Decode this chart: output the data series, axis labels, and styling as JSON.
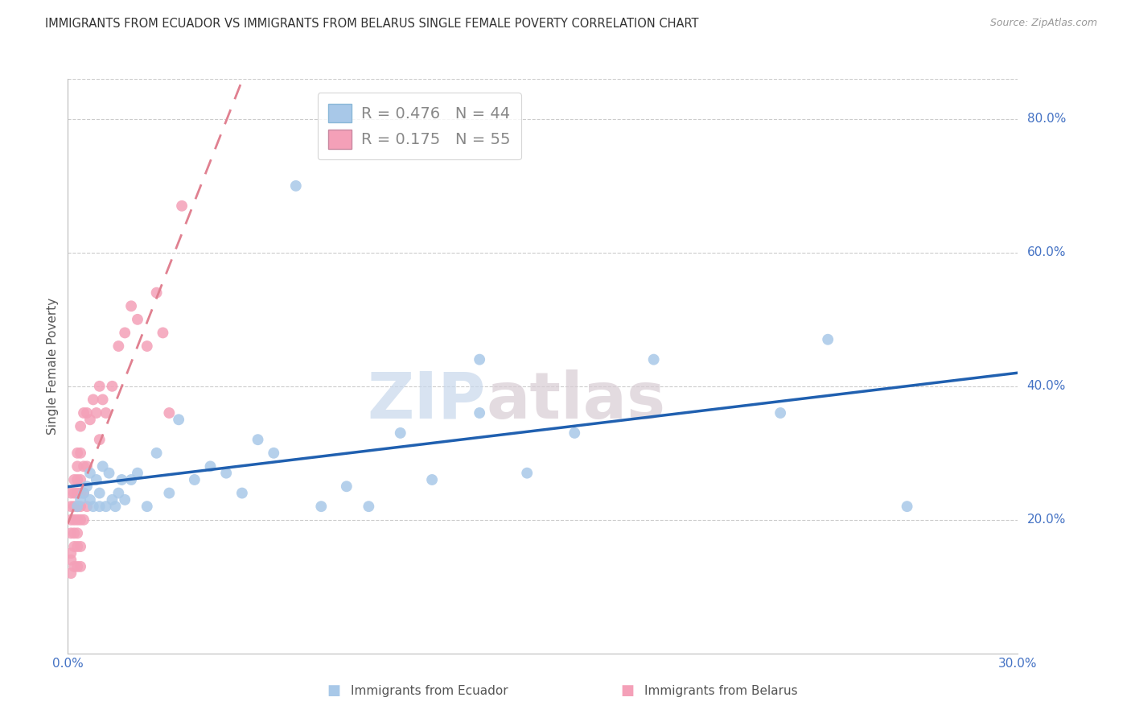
{
  "title": "IMMIGRANTS FROM ECUADOR VS IMMIGRANTS FROM BELARUS SINGLE FEMALE POVERTY CORRELATION CHART",
  "source": "Source: ZipAtlas.com",
  "label_ecuador": "Immigrants from Ecuador",
  "label_belarus": "Immigrants from Belarus",
  "ylabel": "Single Female Poverty",
  "xlim": [
    0.0,
    0.3
  ],
  "ylim": [
    0.0,
    0.86
  ],
  "yticks_right": [
    0.2,
    0.4,
    0.6,
    0.8
  ],
  "yticks_right_labels": [
    "20.0%",
    "40.0%",
    "60.0%",
    "80.0%"
  ],
  "r_ecuador": "0.476",
  "n_ecuador": "44",
  "r_belarus": "0.175",
  "n_belarus": "55",
  "ecuador_fill": "#a8c8e8",
  "ecuador_edge": "#5590c8",
  "belarus_fill": "#f4a0b8",
  "belarus_edge": "#d87090",
  "ecuador_line": "#2060b0",
  "belarus_line": "#e08090",
  "watermark_zip": "ZIP",
  "watermark_atlas": "atlas",
  "ecuador_x": [
    0.003,
    0.004,
    0.005,
    0.006,
    0.007,
    0.007,
    0.008,
    0.009,
    0.01,
    0.01,
    0.011,
    0.012,
    0.013,
    0.014,
    0.015,
    0.016,
    0.017,
    0.018,
    0.02,
    0.022,
    0.025,
    0.028,
    0.032,
    0.035,
    0.04,
    0.045,
    0.05,
    0.055,
    0.06,
    0.065,
    0.072,
    0.08,
    0.088,
    0.095,
    0.105,
    0.115,
    0.13,
    0.145,
    0.16,
    0.185,
    0.225,
    0.24,
    0.265,
    0.13
  ],
  "ecuador_y": [
    0.22,
    0.23,
    0.24,
    0.25,
    0.23,
    0.27,
    0.22,
    0.26,
    0.24,
    0.22,
    0.28,
    0.22,
    0.27,
    0.23,
    0.22,
    0.24,
    0.26,
    0.23,
    0.26,
    0.27,
    0.22,
    0.3,
    0.24,
    0.35,
    0.26,
    0.28,
    0.27,
    0.24,
    0.32,
    0.3,
    0.7,
    0.22,
    0.25,
    0.22,
    0.33,
    0.26,
    0.36,
    0.27,
    0.33,
    0.44,
    0.36,
    0.47,
    0.22,
    0.44
  ],
  "belarus_x": [
    0.001,
    0.001,
    0.001,
    0.001,
    0.001,
    0.001,
    0.001,
    0.002,
    0.002,
    0.002,
    0.002,
    0.002,
    0.002,
    0.002,
    0.003,
    0.003,
    0.003,
    0.003,
    0.003,
    0.003,
    0.003,
    0.003,
    0.003,
    0.004,
    0.004,
    0.004,
    0.004,
    0.004,
    0.004,
    0.004,
    0.004,
    0.005,
    0.005,
    0.005,
    0.005,
    0.006,
    0.006,
    0.006,
    0.007,
    0.008,
    0.009,
    0.01,
    0.01,
    0.011,
    0.012,
    0.014,
    0.016,
    0.018,
    0.02,
    0.022,
    0.025,
    0.028,
    0.03,
    0.032,
    0.036
  ],
  "belarus_y": [
    0.12,
    0.14,
    0.15,
    0.18,
    0.2,
    0.22,
    0.24,
    0.13,
    0.16,
    0.18,
    0.2,
    0.22,
    0.24,
    0.26,
    0.13,
    0.16,
    0.18,
    0.2,
    0.22,
    0.24,
    0.26,
    0.28,
    0.3,
    0.13,
    0.16,
    0.2,
    0.22,
    0.24,
    0.26,
    0.3,
    0.34,
    0.2,
    0.24,
    0.28,
    0.36,
    0.22,
    0.28,
    0.36,
    0.35,
    0.38,
    0.36,
    0.32,
    0.4,
    0.38,
    0.36,
    0.4,
    0.46,
    0.48,
    0.52,
    0.5,
    0.46,
    0.54,
    0.48,
    0.36,
    0.67
  ]
}
